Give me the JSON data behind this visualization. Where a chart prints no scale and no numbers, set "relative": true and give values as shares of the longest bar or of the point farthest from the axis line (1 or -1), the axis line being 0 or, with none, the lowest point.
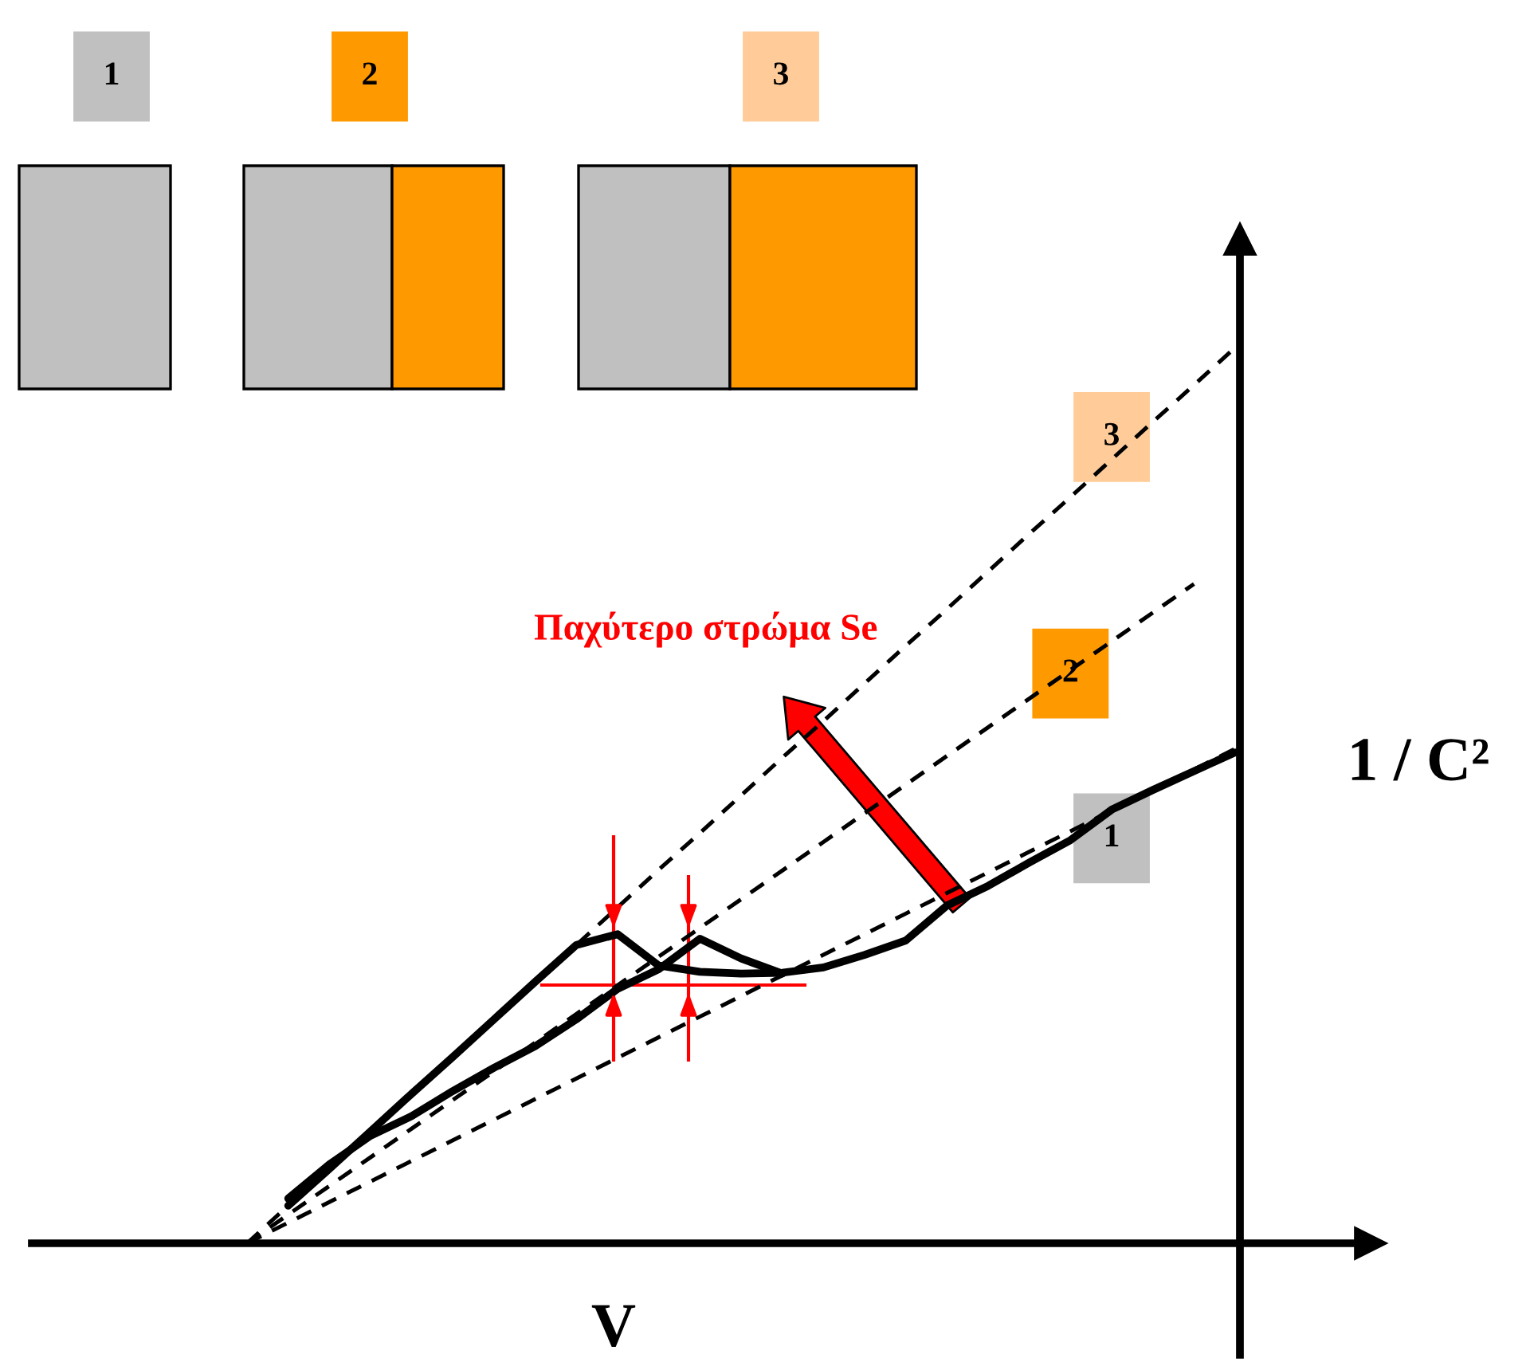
{
  "chart_data": {
    "type": "line",
    "relative": true,
    "xlabel": "V",
    "ylabel": "1 / C²",
    "marker": "none",
    "annotations": [
      "Παχύτερο στρώμα Se"
    ],
    "categories": [
      null,
      null,
      null,
      null,
      null,
      null,
      null,
      null,
      null,
      null,
      null,
      null,
      null,
      null,
      null,
      null,
      null,
      null,
      null,
      null,
      null,
      null,
      null,
      null,
      null
    ],
    "series": [
      {
        "name": "1",
        "color": "#000000",
        "line_style": "dashed",
        "values": [
          0,
          0.023,
          0.046,
          0.069,
          0.092,
          0.115,
          0.138,
          0.161,
          0.184,
          0.207,
          0.23,
          0.253,
          0.276,
          0.299,
          0.322,
          0.345,
          0.368,
          0.391,
          0.414,
          0.437,
          0.46,
          0.483,
          0.506,
          0.529,
          0.552
        ]
      },
      {
        "name": "2",
        "color": "#000000",
        "line_style": "dashed",
        "values": [
          0,
          0.032,
          0.064,
          0.096,
          0.128,
          0.16,
          0.192,
          0.224,
          0.256,
          0.288,
          0.32,
          0.352,
          0.384,
          0.416,
          0.448,
          0.48,
          0.512,
          0.544,
          0.576,
          0.608,
          0.64,
          0.672,
          0.704,
          0.736,
          null
        ]
      },
      {
        "name": "3",
        "color": "#000000",
        "line_style": "dashed",
        "values": [
          0,
          0.042,
          0.083,
          0.125,
          0.167,
          0.208,
          0.25,
          0.292,
          0.333,
          0.375,
          0.417,
          0.458,
          0.5,
          0.542,
          0.583,
          0.625,
          0.667,
          0.708,
          0.75,
          0.792,
          0.833,
          0.875,
          0.917,
          0.958,
          1.0
        ]
      },
      {
        "color": "#000000",
        "line_style": "solid",
        "values": [
          null,
          0.042,
          0.083,
          0.125,
          0.167,
          0.208,
          0.25,
          0.292,
          0.333,
          0.345,
          0.31,
          0.303,
          0.301,
          0.302,
          0.308,
          0.322,
          0.338,
          0.377,
          0.399,
          0.425,
          0.45,
          0.484,
          0.506,
          0.527,
          0.548
        ]
      },
      {
        "color": "#000000",
        "line_style": "solid",
        "values": [
          null,
          0.05,
          0.088,
          0.12,
          0.142,
          0.17,
          0.196,
          0.22,
          0.25,
          0.284,
          0.306,
          0.34,
          0.318,
          0.301,
          null,
          null,
          null,
          null,
          null,
          null,
          null,
          null,
          null,
          null,
          null
        ]
      }
    ]
  }
}
